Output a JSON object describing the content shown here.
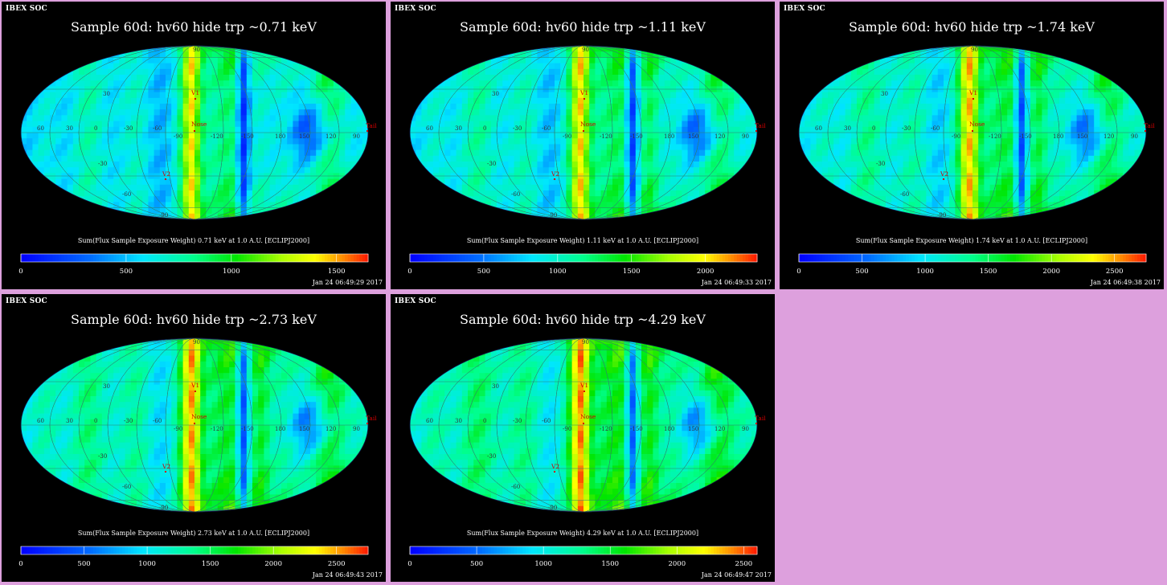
{
  "source_label": "IBEX SOC",
  "panels": [
    {
      "title": "Sample 60d: hv60 hide trp ~0.71 keV",
      "caption": "Sum(Flux Sample Exposure Weight)  0.71 keV at 1.0 A.U. [ECLIPJ2000]",
      "ticks": [
        "0",
        "500",
        "1000",
        "1500"
      ],
      "tick_max": 1650,
      "timestamp": "Jan 24 06:49:29 2017"
    },
    {
      "title": "Sample 60d: hv60 hide trp ~1.11 keV",
      "caption": "Sum(Flux Sample Exposure Weight)  1.11 keV at 1.0 A.U. [ECLIPJ2000]",
      "ticks": [
        "0",
        "500",
        "1000",
        "1500",
        "2000"
      ],
      "tick_max": 2350,
      "timestamp": "Jan 24 06:49:33 2017"
    },
    {
      "title": "Sample 60d: hv60 hide trp ~1.74 keV",
      "caption": "Sum(Flux Sample Exposure Weight)  1.74 keV at 1.0 A.U. [ECLIPJ2000]",
      "ticks": [
        "0",
        "500",
        "1000",
        "1500",
        "2000",
        "2500"
      ],
      "tick_max": 2750,
      "timestamp": "Jan 24 06:49:38 2017"
    },
    {
      "title": "Sample 60d: hv60 hide trp ~2.73 keV",
      "caption": "Sum(Flux Sample Exposure Weight)  2.73 keV at 1.0 A.U. [ECLIPJ2000]",
      "ticks": [
        "0",
        "500",
        "1000",
        "1500",
        "2000",
        "2500"
      ],
      "tick_max": 2750,
      "timestamp": "Jan 24 06:49:43 2017"
    },
    {
      "title": "Sample 60d: hv60 hide trp ~4.29 keV",
      "caption": "Sum(Flux Sample Exposure Weight)  4.29 keV at 1.0 A.U. [ECLIPJ2000]",
      "ticks": [
        "0",
        "500",
        "1000",
        "1500",
        "2000",
        "2500"
      ],
      "tick_max": 2600,
      "timestamp": "Jan 24 06:49:47 2017"
    }
  ],
  "map_labels": {
    "v1": "V1",
    "v2": "V2",
    "nose": "Nose",
    "tail": "Tail",
    "longitudes": [
      "60",
      "30",
      "0",
      "-30",
      "-60",
      "-90",
      "-120",
      "-150",
      "180",
      "150",
      "120",
      "90"
    ],
    "latitudes": [
      "30",
      "-30",
      "-60",
      "90",
      "-90"
    ]
  },
  "colors": {
    "background": "#dda0dd",
    "panel": "#000000",
    "colorbar": [
      "#0000ff",
      "#0060ff",
      "#00e0ff",
      "#00ffb0",
      "#00ff00",
      "#c0ff00",
      "#ffff00",
      "#ff8000",
      "#ff2000"
    ]
  }
}
